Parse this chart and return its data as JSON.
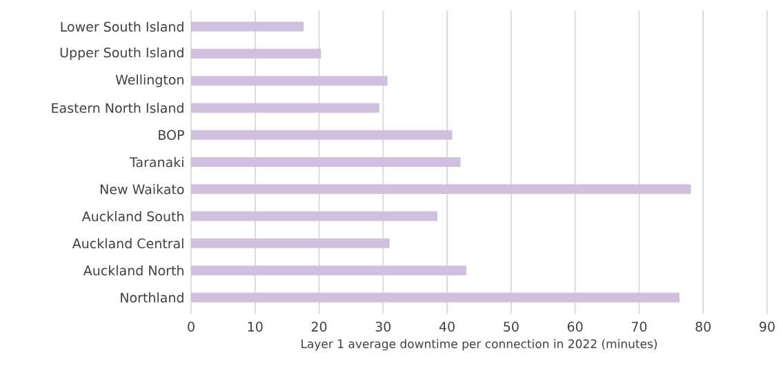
{
  "chart_data": {
    "type": "bar",
    "orientation": "horizontal",
    "categories": [
      "Lower South Island",
      "Upper South Island",
      "Wellington",
      "Eastern North Island",
      "BOP",
      "Taranaki",
      "New Waikato",
      "Auckland South",
      "Auckland Central",
      "Auckland North",
      "Northland"
    ],
    "values": [
      17.6,
      20.3,
      30.7,
      29.4,
      40.8,
      42.1,
      78.1,
      38.5,
      31.0,
      43.0,
      76.3
    ],
    "color": "#d0c0de",
    "xlim": [
      0,
      90
    ],
    "xticks": [
      0,
      10,
      20,
      30,
      40,
      50,
      60,
      70,
      80,
      90
    ],
    "xlabel": "Layer 1 average downtime per connection in 2022 (minutes)",
    "grid": "x"
  }
}
